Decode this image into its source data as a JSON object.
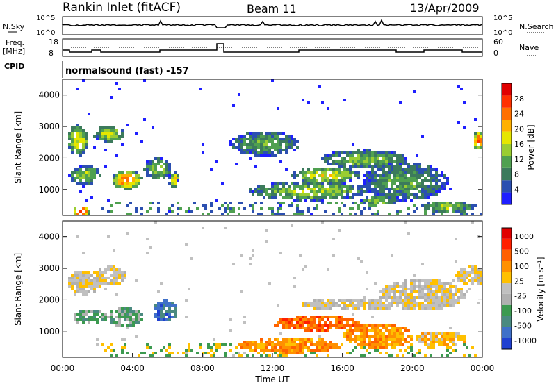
{
  "header": {
    "station": "Rankin Inlet (fitACF)",
    "beam": "Beam 11",
    "date": "13/Apr/2009"
  },
  "panels": {
    "nsky_label": "N.Sky",
    "nsearch_label": "N.Search",
    "nsky_ticks": [
      "10^5",
      "10^0"
    ],
    "nsearch_ticks": [
      "10^5",
      "10^0"
    ],
    "freq_label_1": "Freq.",
    "freq_label_2": "[MHz]",
    "freq_ticks": [
      "18",
      "8"
    ],
    "nave_label": "Nave",
    "nave_ticks": [
      "60",
      "0"
    ],
    "cpid_label": "CPID",
    "cpid_text": "normalsound (fast) -157"
  },
  "colors": {
    "power_scale": [
      "#1f1fff",
      "#2b4fb0",
      "#3c7a5c",
      "#4fa050",
      "#9acd32",
      "#e6e600",
      "#ffb000",
      "#ff7000",
      "#ff3000",
      "#e00000"
    ],
    "velocity_scale": [
      "#2040d0",
      "#3f70c8",
      "#4a8a80",
      "#3c9a50",
      "#b0b0b0",
      "#c0c0c0",
      "#ffc000",
      "#ff9000",
      "#ff6000",
      "#ff2000",
      "#e00000"
    ]
  },
  "chart_data": [
    {
      "type": "heatmap",
      "name": "power",
      "xlabel": "",
      "ylabel": "Slant Range [km]",
      "y_ticks": [
        "1000",
        "2000",
        "3000",
        "4000"
      ],
      "ylim": [
        180,
        4500
      ],
      "colorbar_label": "Power [dB]",
      "colorbar_ticks": [
        "4",
        "8",
        "12",
        "16",
        "20",
        "24",
        "28"
      ],
      "blobs": [
        {
          "t": 0.8,
          "r": 2600,
          "dt": 0.6,
          "dr": 500,
          "lvl": 0.55
        },
        {
          "t": 2.6,
          "r": 2800,
          "dt": 0.9,
          "dr": 250,
          "lvl": 0.5
        },
        {
          "t": 1.2,
          "r": 1500,
          "dt": 0.9,
          "dr": 300,
          "lvl": 0.45
        },
        {
          "t": 3.6,
          "r": 1350,
          "dt": 0.9,
          "dr": 300,
          "lvl": 0.75
        },
        {
          "t": 1.0,
          "r": 350,
          "dt": 0.5,
          "dr": 170,
          "lvl": 0.95
        },
        {
          "t": 5.4,
          "r": 1700,
          "dt": 0.8,
          "dr": 350,
          "lvl": 0.45
        },
        {
          "t": 6.3,
          "r": 1350,
          "dt": 0.3,
          "dr": 250,
          "lvl": 0.65
        },
        {
          "t": 11.5,
          "r": 2500,
          "dt": 2.0,
          "dr": 400,
          "lvl": 0.35
        },
        {
          "t": 15.0,
          "r": 1500,
          "dt": 2.0,
          "dr": 250,
          "lvl": 0.55
        },
        {
          "t": 17.2,
          "r": 2000,
          "dt": 2.5,
          "dr": 300,
          "lvl": 0.4
        },
        {
          "t": 14.0,
          "r": 1000,
          "dt": 3.5,
          "dr": 300,
          "lvl": 0.45
        },
        {
          "t": 19.5,
          "r": 1300,
          "dt": 2.5,
          "dr": 600,
          "lvl": 0.35
        },
        {
          "t": 22.0,
          "r": 500,
          "dt": 1.5,
          "dr": 200,
          "lvl": 0.45
        },
        {
          "t": 23.7,
          "r": 2600,
          "dt": 0.3,
          "dr": 300,
          "lvl": 0.8
        },
        {
          "t": 18.0,
          "r": 700,
          "dt": 1.0,
          "dr": 150,
          "lvl": 0.45
        }
      ]
    },
    {
      "type": "heatmap",
      "name": "velocity",
      "xlabel": "Time UT",
      "ylabel": "Slant Range [km]",
      "x_ticks": [
        "00:00",
        "04:00",
        "08:00",
        "12:00",
        "16:00",
        "20:00",
        "00:00"
      ],
      "xlim": [
        0,
        24
      ],
      "y_ticks": [
        "1000",
        "2000",
        "3000",
        "4000"
      ],
      "ylim": [
        180,
        4500
      ],
      "colorbar_label": "Velocity [m s⁻¹]",
      "colorbar_ticks": [
        "1000",
        "500",
        "100",
        "25",
        "-25",
        "-100",
        "-500",
        "-1000"
      ],
      "blobs": [
        {
          "t": 1.5,
          "r": 1500,
          "dt": 1.0,
          "dr": 250,
          "lvl": 3
        },
        {
          "t": 3.5,
          "r": 1500,
          "dt": 1.0,
          "dr": 300,
          "lvl": 3
        },
        {
          "t": 5.8,
          "r": 1700,
          "dt": 0.7,
          "dr": 350,
          "lvl": 1
        },
        {
          "t": 1.2,
          "r": 2600,
          "dt": 1.0,
          "dr": 400,
          "lvl": 5
        },
        {
          "t": 2.7,
          "r": 2800,
          "dt": 0.9,
          "dr": 300,
          "lvl": 5
        },
        {
          "t": 14.5,
          "r": 1300,
          "dt": 2.5,
          "dr": 250,
          "lvl": 8
        },
        {
          "t": 18.0,
          "r": 900,
          "dt": 2.0,
          "dr": 400,
          "lvl": 7
        },
        {
          "t": 16.5,
          "r": 1900,
          "dt": 3.0,
          "dr": 200,
          "lvl": 5
        },
        {
          "t": 20.5,
          "r": 2200,
          "dt": 2.5,
          "dr": 500,
          "lvl": 5
        },
        {
          "t": 23.3,
          "r": 2800,
          "dt": 0.9,
          "dr": 300,
          "lvl": 5
        },
        {
          "t": 13.0,
          "r": 600,
          "dt": 3.0,
          "dr": 250,
          "lvl": 7
        },
        {
          "t": 21.5,
          "r": 800,
          "dt": 1.5,
          "dr": 250,
          "lvl": 6
        }
      ]
    }
  ]
}
